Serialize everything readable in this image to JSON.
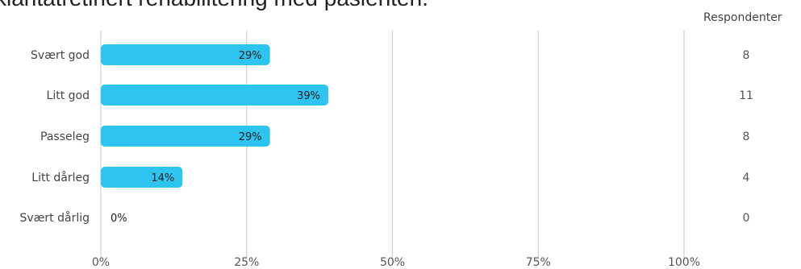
{
  "chart_data": {
    "type": "bar",
    "orientation": "horizontal",
    "title": "klantatretinert rehabilitering med pasienten.",
    "categories": [
      "Svært god",
      "Litt god",
      "Passeleg",
      "Litt dårleg",
      "Svært dårlig"
    ],
    "values": [
      29,
      39,
      29,
      14,
      0
    ],
    "value_labels": [
      "29%",
      "39%",
      "29%",
      "14%",
      "0%"
    ],
    "x_ticks": [
      "0%",
      "25%",
      "50%",
      "75%",
      "100%"
    ],
    "xlim": [
      0,
      100
    ],
    "grid": true,
    "respondents_header": "Respondenter",
    "respondents": [
      "8",
      "11",
      "8",
      "4",
      "0"
    ],
    "colors": {
      "bar": "#2ec4f0",
      "grid": "#cfcfcf"
    }
  }
}
